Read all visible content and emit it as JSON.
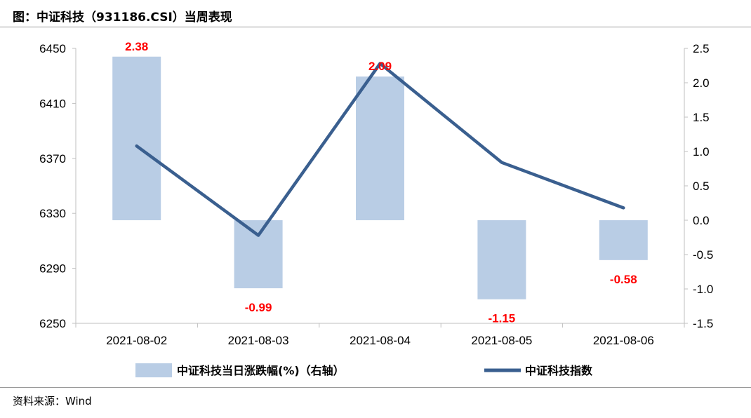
{
  "header": {
    "title": "图：中证科技（931186.CSI）当周表现"
  },
  "footer": {
    "source": "资料来源：Wind"
  },
  "chart_data": {
    "type": "bar",
    "categories": [
      "2021-08-02",
      "2021-08-03",
      "2021-08-04",
      "2021-08-05",
      "2021-08-06"
    ],
    "series": [
      {
        "name": "中证科技当日涨跌幅(%)（右轴）",
        "type": "bar",
        "axis": "right",
        "color": "#b9cde5",
        "values": [
          2.38,
          -0.99,
          2.09,
          -1.15,
          -0.58
        ],
        "labels": [
          "2.38",
          "-0.99",
          "2.09",
          "-1.15",
          "-0.58"
        ],
        "label_color": "#ff0000"
      },
      {
        "name": "中证科技指数",
        "type": "line",
        "axis": "left",
        "color": "#3a5f8f",
        "values": [
          6379,
          6314,
          6439,
          6367,
          6334
        ]
      }
    ],
    "y_left": {
      "min": 6250,
      "max": 6450,
      "ticks": [
        "6250",
        "6290",
        "6330",
        "6370",
        "6410",
        "6450"
      ],
      "tick_values": [
        6250,
        6290,
        6330,
        6370,
        6410,
        6450
      ]
    },
    "y_right": {
      "min": -1.5,
      "max": 2.5,
      "ticks": [
        "-1.5",
        "-1.0",
        "-0.5",
        "0.0",
        "0.5",
        "1.0",
        "1.5",
        "2.0",
        "2.5"
      ],
      "tick_values": [
        -1.5,
        -1.0,
        -0.5,
        0.0,
        0.5,
        1.0,
        1.5,
        2.0,
        2.5
      ]
    },
    "legend": "bottom",
    "grid": false
  }
}
